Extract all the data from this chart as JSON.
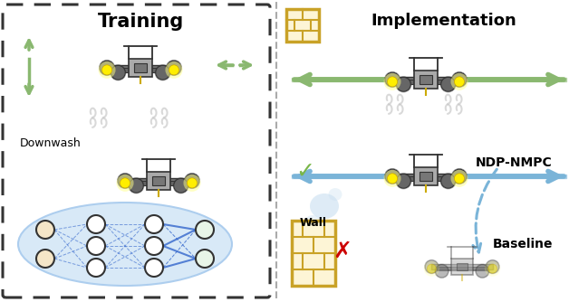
{
  "training_label": "Training",
  "implementation_label": "Implementation",
  "downwash_label": "Downwash",
  "ndp_label": "NDP-NMPC",
  "baseline_label": "Baseline",
  "wall_label": "Wall",
  "bg_color": "#ffffff",
  "training_title_color": "#000000",
  "nn_ellipse_color": "#d6e8f7",
  "nn_node_color_input": "#f5e6c8",
  "nn_node_color_hidden": "#ffffff",
  "nn_node_color_output": "#e8f5e8",
  "nn_edge_color": "#3366cc",
  "arrow_green_color": "#8ab870",
  "arrow_blue_color": "#7ab4d8",
  "wall_color": "#c9a227",
  "wall_fill": "#fdf5d6",
  "check_color": "#7ab648",
  "cross_color": "#cc0000",
  "dashed_border_color": "#333333",
  "drone_body_color": "#888888",
  "drone_frame_color": "#333333",
  "drone_arm_color": "#555555",
  "drone_rotor_color": "#666666",
  "drone_yellow": "#ffee00",
  "drone_alpha_baseline": 0.45,
  "bubble_color": "#c8dff0",
  "divider_color": "#888888"
}
